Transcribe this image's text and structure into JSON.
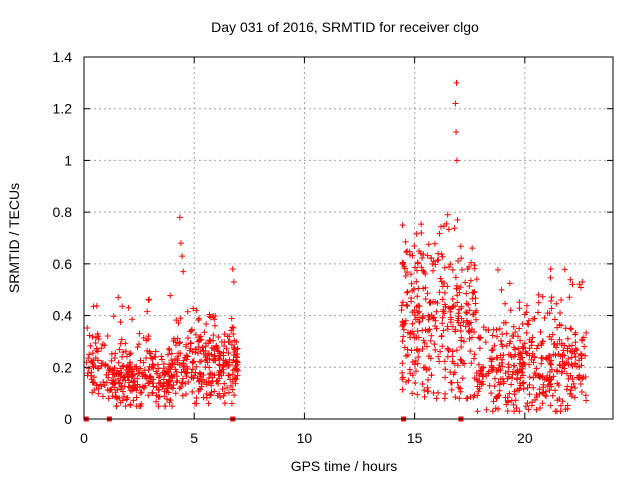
{
  "chart_data": {
    "type": "scatter",
    "title": "Day 031 of 2016, SRMTID for receiver clgo",
    "xlabel": "GPS time / hours",
    "ylabel": "SRMTID / TECUs",
    "xlim": [
      0,
      24
    ],
    "ylim": [
      0,
      1.4
    ],
    "xticks": [
      0,
      5,
      10,
      15,
      20
    ],
    "xtick_labels": [
      "0",
      "5",
      "10",
      "15",
      "20"
    ],
    "yticks": [
      0,
      0.2,
      0.4,
      0.6,
      0.8,
      1.0,
      1.2,
      1.4
    ],
    "ytick_labels": [
      "0",
      "0.2",
      "0.4",
      "0.6",
      "0.8",
      "1",
      "1.2",
      "1.4"
    ],
    "grid": true,
    "marker": "+",
    "color": "#ff0000",
    "series": [
      {
        "name": "SRMTID",
        "clusters": [
          {
            "x_start": 0.1,
            "x_end": 1.2,
            "n": 70,
            "y_min": 0.08,
            "y_max": 0.46,
            "y_mean": 0.2
          },
          {
            "x_start": 1.2,
            "x_end": 4.0,
            "n": 260,
            "y_min": 0.05,
            "y_max": 0.48,
            "y_mean": 0.16
          },
          {
            "x_start": 4.0,
            "x_end": 7.0,
            "n": 280,
            "y_min": 0.06,
            "y_max": 0.43,
            "y_mean": 0.2
          },
          {
            "x_start": 14.4,
            "x_end": 17.8,
            "n": 330,
            "y_min": 0.08,
            "y_max": 0.79,
            "y_mean": 0.36
          },
          {
            "x_start": 17.8,
            "x_end": 22.8,
            "n": 420,
            "y_min": 0.03,
            "y_max": 0.59,
            "y_mean": 0.2
          }
        ],
        "outliers": [
          {
            "x": 4.35,
            "y": 0.78
          },
          {
            "x": 4.4,
            "y": 0.68
          },
          {
            "x": 4.45,
            "y": 0.63
          },
          {
            "x": 4.5,
            "y": 0.57
          },
          {
            "x": 6.75,
            "y": 0.58
          },
          {
            "x": 6.8,
            "y": 0.53
          },
          {
            "x": 16.9,
            "y": 1.3
          },
          {
            "x": 16.85,
            "y": 1.22
          },
          {
            "x": 16.88,
            "y": 1.11
          },
          {
            "x": 16.92,
            "y": 1.0
          },
          {
            "x": 16.95,
            "y": 0.77
          },
          {
            "x": 16.5,
            "y": 0.79
          }
        ],
        "zero_markers": [
          0.1,
          1.15,
          6.75,
          14.5,
          17.1
        ]
      }
    ]
  }
}
